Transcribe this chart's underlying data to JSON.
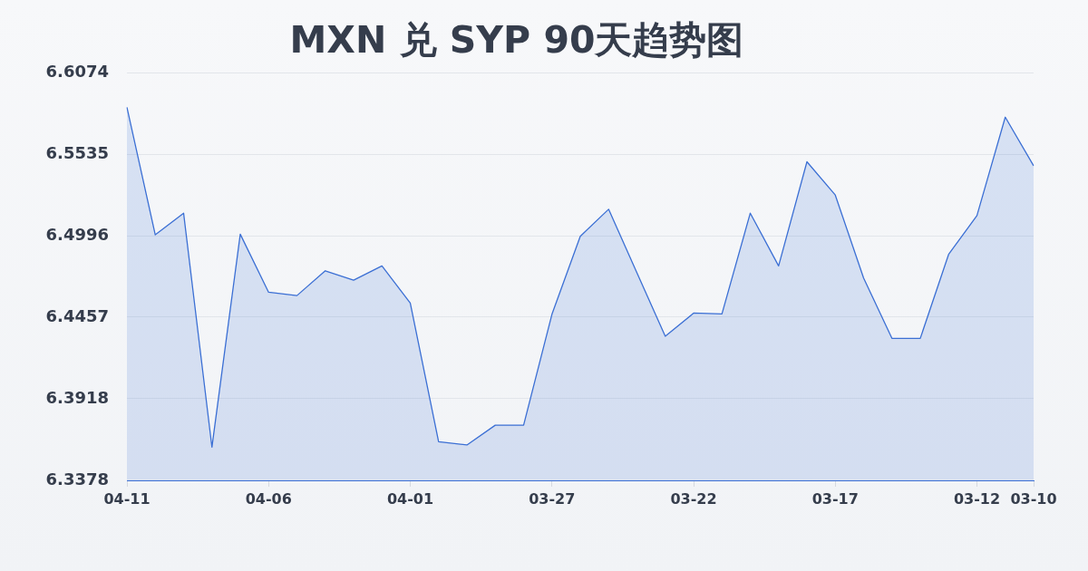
{
  "chart_data": {
    "type": "area",
    "title": "MXN 兑 SYP 90天趋势图",
    "categories": [
      "04-11",
      null,
      null,
      null,
      null,
      "04-06",
      null,
      null,
      null,
      null,
      "04-01",
      null,
      null,
      null,
      null,
      "03-27",
      null,
      null,
      null,
      null,
      "03-22",
      null,
      null,
      null,
      null,
      "03-17",
      null,
      null,
      null,
      null,
      "03-12",
      null,
      "03-10"
    ],
    "values": [
      6.5845,
      6.5002,
      6.5145,
      6.3598,
      6.5006,
      6.4622,
      6.46,
      6.4764,
      6.4702,
      6.4796,
      6.455,
      6.3634,
      6.3612,
      6.3743,
      6.3743,
      6.4476,
      6.4992,
      6.5171,
      6.4751,
      6.4331,
      6.4484,
      6.4479,
      6.5145,
      6.4796,
      6.5485,
      6.5265,
      6.4716,
      6.4317,
      6.4317,
      6.4872,
      6.5129,
      6.578,
      6.5459
    ],
    "color": "#3b6fd4",
    "ylim": [
      6.3378,
      6.6074
    ],
    "yticks": [
      6.3378,
      6.3918,
      6.4457,
      6.4996,
      6.5535,
      6.6074
    ],
    "grid": "y",
    "legend": false,
    "marker": "none"
  }
}
